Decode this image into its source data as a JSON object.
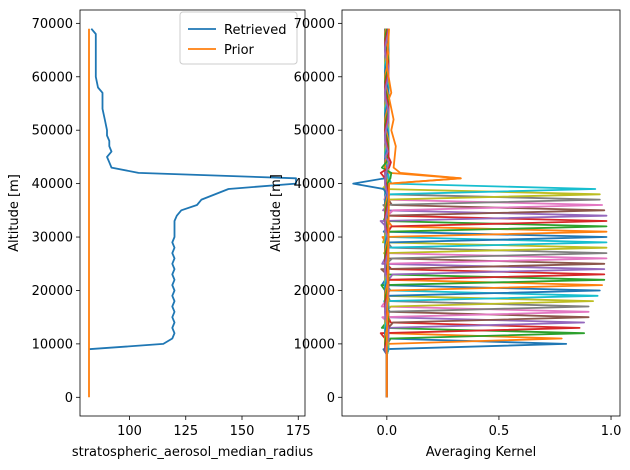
{
  "chart_data": [
    {
      "type": "line",
      "xlabel": "stratospheric_aerosol_median_radius",
      "ylabel": "Altitude [m]",
      "xlim": [
        78,
        178
      ],
      "ylim": [
        -3500,
        72500
      ],
      "xticks": [
        100,
        125,
        150,
        175
      ],
      "xtick_labels": [
        "100",
        "125",
        "150",
        "175"
      ],
      "yticks": [
        0,
        10000,
        20000,
        30000,
        40000,
        50000,
        60000,
        70000
      ],
      "ytick_labels": [
        "0",
        "10000",
        "20000",
        "30000",
        "40000",
        "50000",
        "60000",
        "70000"
      ],
      "legend": {
        "placement": "upper right",
        "entries": [
          "Retrieved",
          "Prior"
        ]
      },
      "series": [
        {
          "name": "Retrieved",
          "color": "#1f77b4",
          "points": [
            [
              82,
              9000
            ],
            [
              115,
              10000
            ],
            [
              119,
              11000
            ],
            [
              120,
              12000
            ],
            [
              119,
              13000
            ],
            [
              120,
              14000
            ],
            [
              119,
              15000
            ],
            [
              120,
              16000
            ],
            [
              119,
              17000
            ],
            [
              120,
              18000
            ],
            [
              119,
              19000
            ],
            [
              120,
              20000
            ],
            [
              119,
              21000
            ],
            [
              120,
              22000
            ],
            [
              119,
              23000
            ],
            [
              120,
              24000
            ],
            [
              119,
              25000
            ],
            [
              120,
              26000
            ],
            [
              119,
              27000
            ],
            [
              120,
              28000
            ],
            [
              119,
              29000
            ],
            [
              120,
              30000
            ],
            [
              120,
              31000
            ],
            [
              120,
              32000
            ],
            [
              120,
              33000
            ],
            [
              121,
              34000
            ],
            [
              123,
              35000
            ],
            [
              130,
              36000
            ],
            [
              132,
              37000
            ],
            [
              144,
              39000
            ],
            [
              174,
              40000
            ],
            [
              174,
              41000
            ],
            [
              104,
              42000
            ],
            [
              92,
              43000
            ],
            [
              91,
              44000
            ],
            [
              90,
              45000
            ],
            [
              92,
              46000
            ],
            [
              91,
              47000
            ],
            [
              91,
              48000
            ],
            [
              90,
              49000
            ],
            [
              90,
              50000
            ],
            [
              89,
              52000
            ],
            [
              88,
              54000
            ],
            [
              88,
              56000
            ],
            [
              88,
              57000
            ],
            [
              86,
              58000
            ],
            [
              85,
              60000
            ],
            [
              85,
              62000
            ],
            [
              85,
              64000
            ],
            [
              85,
              66000
            ],
            [
              85,
              68000
            ],
            [
              83,
              69000
            ]
          ]
        },
        {
          "name": "Prior",
          "color": "#ff7f0e",
          "points": [
            [
              82,
              0
            ],
            [
              82,
              69000
            ]
          ]
        }
      ]
    },
    {
      "type": "line",
      "xlabel": "Averaging Kernel",
      "ylabel": "Altitude [m]",
      "xlim": [
        -0.2,
        1.04
      ],
      "ylim": [
        -3500,
        72500
      ],
      "xticks": [
        0.0,
        0.5,
        1.0
      ],
      "xtick_labels": [
        "0.0",
        "0.5",
        "1.0"
      ],
      "yticks": [
        0,
        10000,
        20000,
        30000,
        40000,
        50000,
        60000,
        70000
      ],
      "ytick_labels": [
        "0",
        "10000",
        "20000",
        "30000",
        "40000",
        "50000",
        "60000",
        "70000"
      ],
      "kernel_colors": [
        "#1f77b4",
        "#ff7f0e",
        "#2ca02c",
        "#d62728",
        "#9467bd",
        "#8c564b",
        "#e377c2",
        "#7f7f7f",
        "#bcbd22",
        "#17becf"
      ],
      "kernel_peaks": [
        [
          10000,
          0.8
        ],
        [
          11000,
          0.78
        ],
        [
          12000,
          0.88
        ],
        [
          13000,
          0.86
        ],
        [
          14000,
          0.88
        ],
        [
          15000,
          0.9
        ],
        [
          16000,
          0.9
        ],
        [
          17000,
          0.9
        ],
        [
          18000,
          0.92
        ],
        [
          19000,
          0.94
        ],
        [
          20000,
          0.95
        ],
        [
          21000,
          0.96
        ],
        [
          22000,
          0.97
        ],
        [
          23000,
          0.97
        ],
        [
          24000,
          0.97
        ],
        [
          25000,
          0.97
        ],
        [
          26000,
          0.98
        ],
        [
          27000,
          0.98
        ],
        [
          28000,
          0.98
        ],
        [
          29000,
          0.98
        ],
        [
          30000,
          0.98
        ],
        [
          31000,
          0.98
        ],
        [
          32000,
          0.98
        ],
        [
          33000,
          0.98
        ],
        [
          34000,
          0.98
        ],
        [
          35000,
          0.97
        ],
        [
          36000,
          0.96
        ],
        [
          37000,
          0.95
        ],
        [
          38000,
          0.95
        ],
        [
          39000,
          0.93
        ],
        [
          40000,
          -0.15
        ],
        [
          41000,
          0.33
        ],
        [
          42000,
          0.02
        ],
        [
          43000,
          0.01
        ],
        [
          44000,
          0.01
        ]
      ]
    }
  ]
}
